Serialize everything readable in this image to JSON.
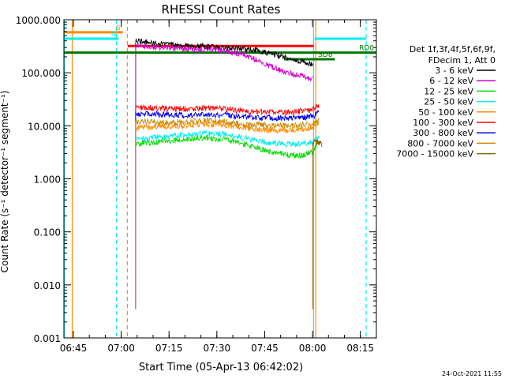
{
  "chart_data": {
    "type": "line",
    "title": "RHESSI Count Rates",
    "xlabel": "Start Time (05-Apr-13 06:42:02)",
    "ylabel": "Count Rate (s⁻¹ detector⁻¹ segment⁻¹)",
    "y_scale": "log",
    "xlim_minutes": [
      0,
      98
    ],
    "ylim": [
      0.001,
      1000
    ],
    "x_ticks": [
      {
        "minutes": 2.97,
        "label": "06:45"
      },
      {
        "minutes": 17.97,
        "label": "07:00"
      },
      {
        "minutes": 32.97,
        "label": "07:15"
      },
      {
        "minutes": 47.97,
        "label": "07:30"
      },
      {
        "minutes": 62.97,
        "label": "07:45"
      },
      {
        "minutes": 77.97,
        "label": "08:00"
      },
      {
        "minutes": 92.97,
        "label": "08:15"
      }
    ],
    "y_ticks": [
      {
        "value": 0.001,
        "label": "0.001"
      },
      {
        "value": 0.01,
        "label": "0.010"
      },
      {
        "value": 0.1,
        "label": "0.100"
      },
      {
        "value": 1,
        "label": "1.000"
      },
      {
        "value": 10,
        "label": "10.000"
      },
      {
        "value": 100,
        "label": "100.000"
      },
      {
        "value": 1000,
        "label": "1000.000"
      }
    ],
    "legend_header": [
      "Det 1f,3f,4f,5f,6f,9f,",
      "FDecim 1, Att 0"
    ],
    "legend_position": "right",
    "series": [
      {
        "name": "3 - 6 keV",
        "color": "#000000",
        "x": [
          22.5,
          25,
          30,
          35,
          40,
          45,
          50,
          55,
          60,
          65,
          70,
          75,
          78
        ],
        "y": [
          420,
          380,
          350,
          330,
          320,
          310,
          300,
          290,
          270,
          230,
          190,
          160,
          140
        ]
      },
      {
        "name": "6 - 12 keV",
        "color": "#cc00cc",
        "x": [
          22.5,
          25,
          30,
          35,
          40,
          45,
          50,
          55,
          60,
          65,
          70,
          75,
          78
        ],
        "y": [
          330,
          310,
          300,
          290,
          280,
          270,
          260,
          230,
          180,
          130,
          100,
          85,
          75
        ]
      },
      {
        "name": "12 - 25 keV",
        "color": "#00dd00",
        "x": [
          22.5,
          25,
          30,
          35,
          40,
          45,
          50,
          55,
          60,
          65,
          70,
          75,
          78,
          80
        ],
        "y": [
          4.5,
          4.8,
          5.0,
          5.3,
          5.6,
          5.9,
          5.6,
          4.8,
          3.9,
          3.2,
          2.8,
          2.8,
          3.2,
          5.0
        ]
      },
      {
        "name": "25 - 50 keV",
        "color": "#00eeee",
        "x": [
          22.5,
          25,
          30,
          35,
          40,
          45,
          50,
          55,
          60,
          65,
          70,
          75,
          78,
          80
        ],
        "y": [
          5.5,
          5.8,
          6.2,
          6.6,
          7.0,
          7.3,
          7.0,
          6.2,
          5.3,
          4.8,
          4.5,
          4.6,
          5.0,
          6.5
        ]
      },
      {
        "name": "50 - 100 keV",
        "color": "#ff8c00",
        "x": [
          22.5,
          25,
          30,
          35,
          40,
          45,
          50,
          55,
          60,
          65,
          70,
          75,
          78,
          80
        ],
        "y": [
          9.0,
          9.2,
          9.6,
          10.0,
          10.3,
          10.8,
          10.3,
          9.5,
          8.7,
          8.3,
          8.3,
          8.7,
          9.2,
          12.0
        ]
      },
      {
        "name": "100 - 300 keV",
        "color": "#ff0000",
        "x": [
          22.5,
          25,
          30,
          35,
          40,
          45,
          50,
          55,
          60,
          65,
          70,
          75,
          78,
          80
        ],
        "y": [
          22,
          22,
          21.5,
          21,
          21,
          21.5,
          21,
          19.5,
          18.5,
          18,
          18,
          19,
          20,
          25
        ]
      },
      {
        "name": "300 - 800 keV",
        "color": "#0000ee",
        "x": [
          22.5,
          25,
          30,
          35,
          40,
          45,
          50,
          55,
          60,
          65,
          70,
          75,
          78,
          80
        ],
        "y": [
          17,
          17,
          16.5,
          16,
          16,
          16.5,
          16,
          15,
          14.5,
          14,
          14,
          14.5,
          15,
          18
        ]
      },
      {
        "name": "800 - 7000 keV",
        "color": "#cc8800",
        "x": [
          22.5,
          25,
          30,
          35,
          40,
          45,
          50,
          55,
          60,
          65,
          70,
          75,
          78,
          80
        ],
        "y": [
          12,
          12,
          11.5,
          11.5,
          12,
          12.5,
          12,
          11,
          10.5,
          10,
          10,
          10.5,
          11,
          13
        ]
      },
      {
        "name": "7000 - 15000 keV",
        "color": "#886600",
        "x": [
          78,
          79,
          80,
          81
        ],
        "y": [
          4.5,
          5.0,
          4.8,
          4.6
        ]
      }
    ],
    "attenuator_levels": [
      {
        "x_start": 0,
        "x_end": 18.5,
        "y": 580,
        "color": "#ff8c00",
        "label": "S"
      },
      {
        "x_start": 0,
        "x_end": 17.2,
        "y": 440,
        "color": "#00eeee",
        "label": "N"
      },
      {
        "x_start": 20,
        "x_end": 78.3,
        "y": 320,
        "color": "#ff0000",
        "label": ""
      },
      {
        "x_start": 0,
        "x_end": 98,
        "y": 240,
        "color": "#007700",
        "label": "RD0"
      },
      {
        "x_start": 69,
        "x_end": 85,
        "y": 180,
        "color": "#007700",
        "label": "SD8"
      },
      {
        "x_start": 78.6,
        "x_end": 94.8,
        "y": 440,
        "color": "#00eeee",
        "label": ""
      }
    ],
    "vertical_lines": [
      {
        "x": 0.1,
        "color": "#00eeee",
        "style": "solid"
      },
      {
        "x": 2.6,
        "color": "#ff8c00",
        "style": "solid"
      },
      {
        "x": 16.5,
        "color": "#00eeee",
        "style": "dashed"
      },
      {
        "x": 19.9,
        "color": "#ff8c00",
        "style": "dashed"
      },
      {
        "x": 78.3,
        "color": "#00eeee",
        "style": "solid"
      },
      {
        "x": 79.0,
        "color": "#ff8c00",
        "style": "solid"
      },
      {
        "x": 94.8,
        "color": "#00eeee",
        "style": "dashed"
      }
    ],
    "footer_timestamp": "24-Oct-2021 11:55"
  }
}
